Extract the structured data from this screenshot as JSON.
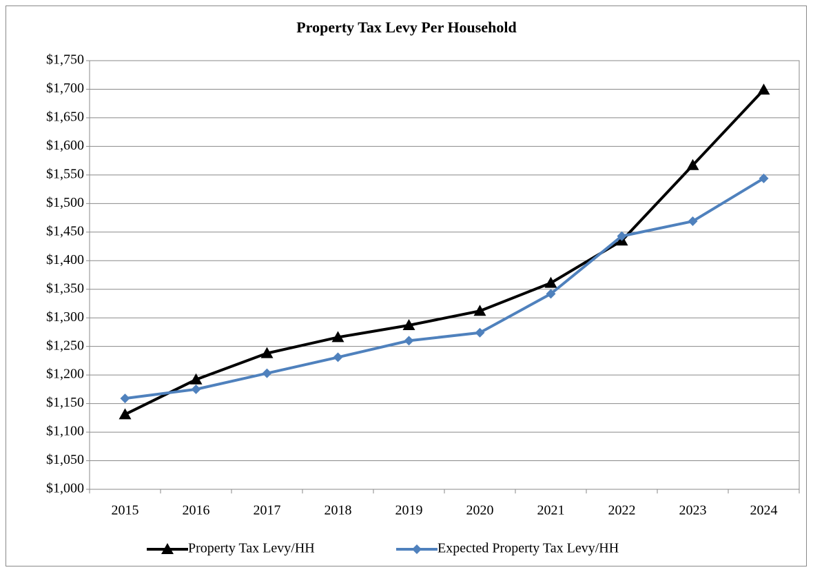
{
  "chart_data": {
    "type": "line",
    "title": "Property Tax Levy Per Household",
    "categories": [
      "2015",
      "2016",
      "2017",
      "2018",
      "2019",
      "2020",
      "2021",
      "2022",
      "2023",
      "2024"
    ],
    "series": [
      {
        "name": "Property Tax Levy/HH",
        "color": "#000000",
        "marker": "triangle",
        "values": [
          1131,
          1192,
          1238,
          1266,
          1287,
          1312,
          1361,
          1435,
          1567,
          1699
        ]
      },
      {
        "name": "Expected Property Tax Levy/HH",
        "color": "#4f81bd",
        "marker": "diamond",
        "values": [
          1159,
          1175,
          1203,
          1231,
          1260,
          1274,
          1342,
          1443,
          1469,
          1544
        ]
      }
    ],
    "ylim": [
      1000,
      1750
    ],
    "yticks": [
      {
        "value": 1000,
        "label": "$1,000"
      },
      {
        "value": 1050,
        "label": "$1,050"
      },
      {
        "value": 1100,
        "label": "$1,100"
      },
      {
        "value": 1150,
        "label": "$1,150"
      },
      {
        "value": 1200,
        "label": "$1,200"
      },
      {
        "value": 1250,
        "label": "$1,250"
      },
      {
        "value": 1300,
        "label": "$1,300"
      },
      {
        "value": 1350,
        "label": "$1,350"
      },
      {
        "value": 1400,
        "label": "$1,400"
      },
      {
        "value": 1450,
        "label": "$1,450"
      },
      {
        "value": 1500,
        "label": "$1,500"
      },
      {
        "value": 1550,
        "label": "$1,550"
      },
      {
        "value": 1600,
        "label": "$1,600"
      },
      {
        "value": 1650,
        "label": "$1,650"
      },
      {
        "value": 1700,
        "label": "$1,700"
      },
      {
        "value": 1750,
        "label": "$1,750"
      }
    ],
    "grid": true,
    "legend": "bottom"
  }
}
